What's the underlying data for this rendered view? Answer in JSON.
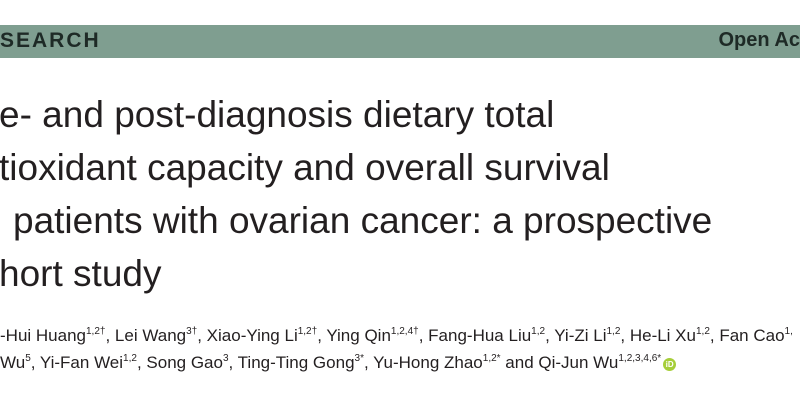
{
  "header": {
    "label": "SEARCH",
    "access": "Open Ac"
  },
  "title": {
    "lines": [
      "e- and post-diagnosis dietary total",
      "tioxidant capacity and overall survival",
      "patients with ovarian cancer: a prospective",
      "hort study"
    ]
  },
  "authors": {
    "lines": [
      [
        {
          "text": "-Hui Huang",
          "sup": "1,2†"
        },
        {
          "text": ", Lei Wang",
          "sup": "3†"
        },
        {
          "text": ", Xiao-Ying Li",
          "sup": "1,2†"
        },
        {
          "text": ", Ying Qin",
          "sup": "1,2,4†"
        },
        {
          "text": ", Fang-Hua Liu",
          "sup": "1,2"
        },
        {
          "text": ", Yi-Zi Li",
          "sup": "1,2"
        },
        {
          "text": ", He-Li Xu",
          "sup": "1,2"
        },
        {
          "text": ", Fan Cao",
          "sup": "1,"
        }
      ],
      [
        {
          "text": "Wu",
          "sup": "5"
        },
        {
          "text": ", Yi-Fan Wei",
          "sup": "1,2"
        },
        {
          "text": ", Song Gao",
          "sup": "3"
        },
        {
          "text": ", Ting-Ting Gong",
          "sup": "3*"
        },
        {
          "text": ", Yu-Hong Zhao",
          "sup": "1,2*"
        },
        {
          "text": " and Qi-Jun Wu",
          "sup": "1,2,3,4,6*"
        }
      ]
    ]
  }
}
